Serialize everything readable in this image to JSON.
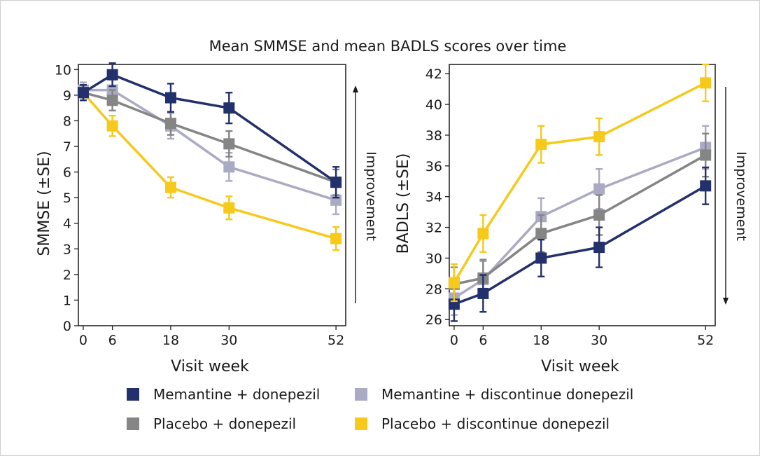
{
  "figure_title": "Mean SMMSE and mean BADLS scores over time",
  "colors": {
    "Memantine + donepezil": "#22306b",
    "Memantine + discontinue donepezil": "#abaac4",
    "Placebo + donepezil": "#858585",
    "Placebo + discontinue donepezil": "#f6c91b"
  },
  "legend": [
    "Memantine + donepezil",
    "Memantine + discontinue donepezil",
    "Placebo + donepezil",
    "Placebo + discontinue donepezil"
  ],
  "chart_data": [
    {
      "type": "line",
      "panel": "SMMSE",
      "xlabel": "Visit week",
      "ylabel": "SMMSE (±SE)",
      "annotation": "Improvement",
      "annotation_arrow": "up",
      "x": [
        0,
        6,
        18,
        30,
        52
      ],
      "xlim": [
        -1,
        54
      ],
      "ylim": [
        0,
        10.2
      ],
      "yticks": [
        0,
        1,
        2,
        3,
        4,
        5,
        6,
        7,
        8,
        9,
        10
      ],
      "xticks": [
        0,
        6,
        18,
        30,
        52
      ],
      "series": [
        {
          "name": "Placebo + discontinue donepezil",
          "values": [
            9.1,
            7.8,
            5.4,
            4.6,
            3.4
          ],
          "se": [
            0.3,
            0.4,
            0.4,
            0.45,
            0.45
          ]
        },
        {
          "name": "Memantine + discontinue donepezil",
          "values": [
            9.2,
            9.2,
            7.8,
            6.2,
            4.9
          ],
          "se": [
            0.3,
            0.4,
            0.5,
            0.55,
            0.55
          ]
        },
        {
          "name": "Placebo + donepezil",
          "values": [
            9.1,
            8.8,
            7.9,
            7.1,
            5.6
          ],
          "se": [
            0.3,
            0.4,
            0.45,
            0.5,
            0.5
          ]
        },
        {
          "name": "Memantine + donepezil",
          "values": [
            9.1,
            9.8,
            8.9,
            8.5,
            5.6
          ],
          "se": [
            0.3,
            0.45,
            0.55,
            0.6,
            0.6
          ]
        }
      ]
    },
    {
      "type": "line",
      "panel": "BADLS",
      "xlabel": "Visit week",
      "ylabel": "BADLS (±SE)",
      "annotation": "Improvement",
      "annotation_arrow": "down",
      "x": [
        0,
        6,
        18,
        30,
        52
      ],
      "xlim": [
        -1,
        54
      ],
      "ylim": [
        25.6,
        42.6
      ],
      "yticks": [
        26,
        28,
        30,
        32,
        34,
        36,
        38,
        40,
        42
      ],
      "xticks": [
        0,
        6,
        18,
        30,
        52
      ],
      "series": [
        {
          "name": "Memantine + discontinue donepezil",
          "values": [
            27.4,
            28.6,
            32.7,
            34.5,
            37.2
          ],
          "se": [
            1.1,
            1.2,
            1.2,
            1.3,
            1.4
          ]
        },
        {
          "name": "Placebo + donepezil",
          "values": [
            28.3,
            28.7,
            31.6,
            32.8,
            36.7
          ],
          "se": [
            1.1,
            1.2,
            1.2,
            1.3,
            1.4
          ]
        },
        {
          "name": "Memantine + donepezil",
          "values": [
            27.0,
            27.7,
            30.0,
            30.7,
            34.7
          ],
          "se": [
            1.1,
            1.2,
            1.2,
            1.3,
            1.2
          ]
        },
        {
          "name": "Placebo + discontinue donepezil",
          "values": [
            28.4,
            31.6,
            37.4,
            37.9,
            41.4
          ],
          "se": [
            1.2,
            1.2,
            1.2,
            1.2,
            1.2
          ]
        }
      ]
    }
  ]
}
